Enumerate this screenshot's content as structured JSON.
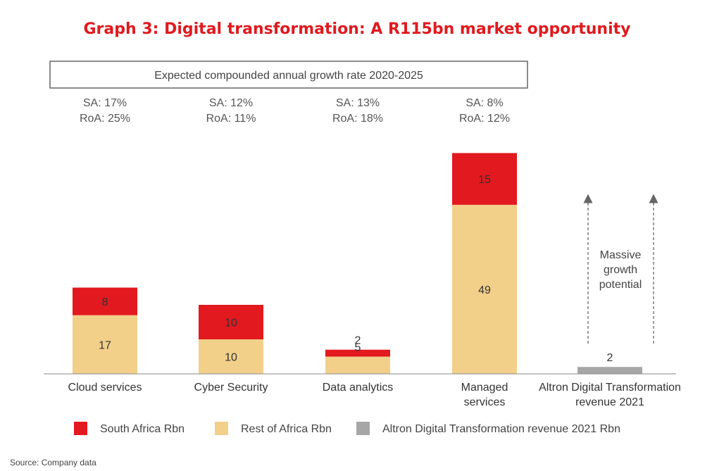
{
  "title": "Graph 3: Digital transformation: A R115bn market opportunity",
  "cagr_box": {
    "label": "Expected compounded annual growth rate 2020-2025"
  },
  "growth_rates": [
    {
      "sa": "SA: 17%",
      "roa": "RoA: 25%"
    },
    {
      "sa": "SA: 12%",
      "roa": "RoA: 11%"
    },
    {
      "sa": "SA: 13%",
      "roa": "RoA: 18%"
    },
    {
      "sa": "SA: 8%",
      "roa": "RoA: 12%"
    }
  ],
  "annotation": {
    "lines": [
      "Massive",
      "growth",
      "potential"
    ]
  },
  "source": "Source: Company data",
  "colors": {
    "south_africa": "#e2191f",
    "rest_of_africa": "#f2d08a",
    "altron": "#a6a6a6",
    "title": "#e01a1f"
  },
  "chart_data": {
    "type": "bar",
    "stacked": true,
    "title": "Graph 3: Digital transformation: A R115bn market opportunity",
    "categories": [
      [
        "Cloud services"
      ],
      [
        "Cyber Security"
      ],
      [
        "Data analytics"
      ],
      [
        "Managed",
        "services"
      ],
      [
        "Altron Digital Transformation",
        "revenue 2021"
      ]
    ],
    "series": [
      {
        "name": "Rest of Africa Rbn",
        "values": [
          17,
          10,
          5,
          49,
          null
        ],
        "color": "#f2d08a"
      },
      {
        "name": "South Africa Rbn",
        "values": [
          8,
          10,
          2,
          15,
          null
        ],
        "color": "#e2191f"
      },
      {
        "name": "Altron Digital Transformation revenue 2021 Rbn",
        "values": [
          null,
          null,
          null,
          null,
          2
        ],
        "color": "#a6a6a6"
      }
    ],
    "ylim": [
      0,
      70
    ],
    "grid": false,
    "legend_position": "bottom",
    "legend": [
      {
        "label": "South Africa Rbn",
        "color": "#e2191f"
      },
      {
        "label": "Rest of Africa Rbn",
        "color": "#f2d08a"
      },
      {
        "label": "Altron Digital Transformation revenue 2021 Rbn",
        "color": "#a6a6a6"
      }
    ]
  }
}
